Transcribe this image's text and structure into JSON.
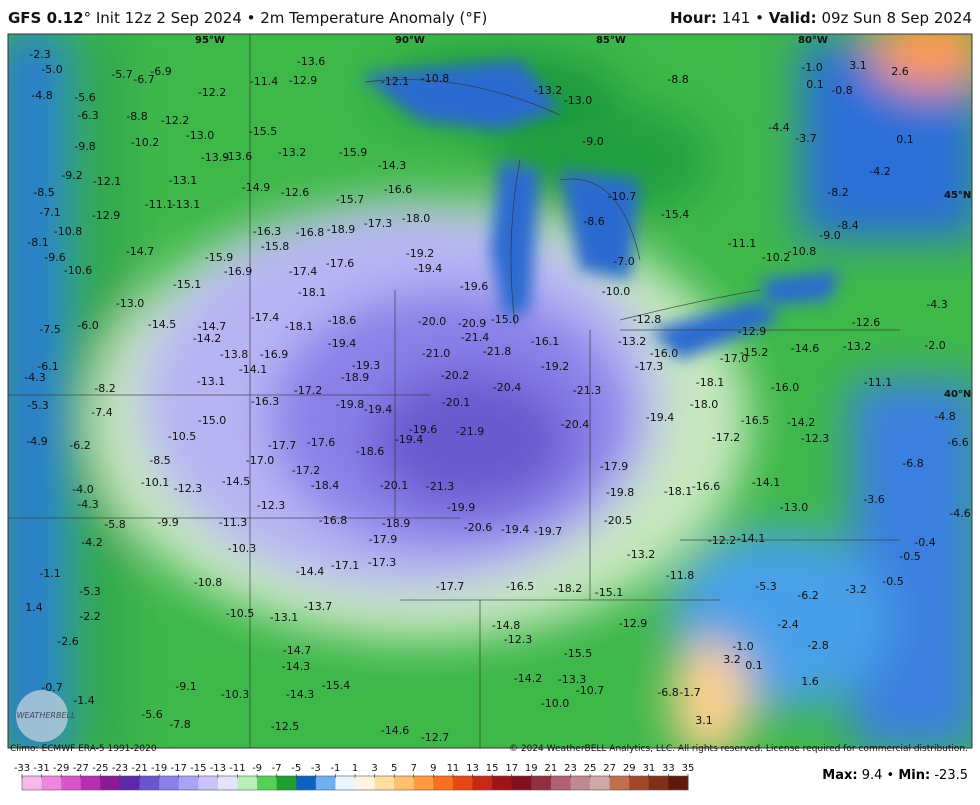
{
  "header": {
    "model": "GFS 0.12",
    "description": "° Init 12z 2 Sep 2024 • 2m Temperature Anomaly (°F)",
    "hour_label": "Hour:",
    "hour_value": "141 •",
    "valid_label": "Valid:",
    "valid_value": "09z Sun 8 Sep 2024"
  },
  "geo_labels": [
    "95°W",
    "90°W",
    "85°W",
    "80°W",
    "45°N",
    "40°N"
  ],
  "map": {
    "labels": [
      "-2.3",
      "-5.0",
      "-4.8",
      "-5.6",
      "-6.3",
      "-9.8",
      "-9.2",
      "-8.5",
      "-7.1",
      "-10.8",
      "-8.1",
      "-9.6",
      "-10.6",
      "-7.5",
      "-6.0",
      "-6.1",
      "-4.3",
      "-8.2",
      "-5.3",
      "-7.4",
      "-4.9",
      "-6.2",
      "-4.0",
      "-4.3",
      "-5.8",
      "-4.2",
      "-1.1",
      "-5.3",
      "1.4",
      "-2.2",
      "-2.6",
      "-0.7",
      "-1.4",
      "-5.6",
      "-7.8",
      "-12.5",
      "-14.6",
      "-12.7",
      "-10.0",
      "-13.3",
      "-14.2",
      "-15.5",
      "-12.3",
      "-14.8",
      "-17.7",
      "-16.5",
      "-18.2",
      "-19.4",
      "-20.6",
      "-19.7",
      "-20.5",
      "-19.8",
      "-18.1",
      "-17.9",
      "-21.9",
      "-20.4",
      "-21.3",
      "-20.4",
      "-20.1",
      "-20.2",
      "-21.0",
      "-20.0",
      "-20.9",
      "-21.4",
      "-21.8",
      "-19.2",
      "-18.1",
      "-19.4",
      "-15.0",
      "-19.6",
      "-19.4",
      "-19.2",
      "-18.0",
      "-17.3",
      "-16.6",
      "-14.3",
      "-12.1",
      "-10.8",
      "-13.2",
      "-13.0",
      "-8.8",
      "-9.0",
      "-10.7",
      "-8.6",
      "-7.0",
      "-10.0",
      "-12.8",
      "-16.0",
      "-17.3",
      "-13.2",
      "-16.1",
      "-15.4",
      "-11.1",
      "-10.2",
      "-10.8",
      "-9.0",
      "-8.4",
      "-8.2",
      "-4.2",
      "0.1",
      "-1.0",
      "3.1",
      "2.6",
      "0.1",
      "-0.8",
      "-4.4",
      "-3.7",
      "-12.6",
      "-13.2",
      "-14.6",
      "-11.1",
      "-4.3",
      "-2.0",
      "-4.8",
      "-6.6",
      "-6.8",
      "-3.6",
      "-4.6",
      "-0.4",
      "-0.5",
      "-0.5",
      "-3.2",
      "-6.2",
      "-5.3",
      "-2.4",
      "-1.0",
      "3.2",
      "0.1",
      "-2.8",
      "1.6",
      "3.1",
      "-1.7",
      "-6.8",
      "-10.7",
      "-12.9",
      "-13.2",
      "-15.1",
      "-11.8",
      "-12.2",
      "-14.1",
      "-13.0",
      "-14.1",
      "-16.6",
      "-17.2",
      "-14.2",
      "-12.3",
      "-16.5",
      "-18.0",
      "-15.2",
      "-17.0",
      "-12.9",
      "-16.0",
      "-10.1",
      "-12.3",
      "-14.5",
      "-12.3",
      "-16.8",
      "-18.9",
      "-17.9",
      "-17.3",
      "-17.1",
      "-14.4",
      "-13.7",
      "-13.1",
      "-14.7",
      "-14.3",
      "-15.4",
      "-14.3",
      "-10.3",
      "-9.1",
      "-10.5",
      "-10.8",
      "-11.3",
      "-9.9",
      "-10.3",
      "-8.5",
      "-10.5",
      "-15.0",
      "-17.0",
      "-17.7",
      "-17.6",
      "-17.2",
      "-18.4",
      "-20.1",
      "-21.3",
      "-19.9",
      "-18.6",
      "-19.4",
      "-19.6",
      "-19.4",
      "-19.8",
      "-16.3",
      "-17.2",
      "-18.9",
      "-19.3",
      "-19.4",
      "-18.1",
      "-18.6",
      "-17.4",
      "-13.8",
      "-16.9",
      "-14.1",
      "-13.1",
      "-14.2",
      "-14.7",
      "-14.5",
      "-13.0",
      "-15.1",
      "-16.9",
      "-17.4",
      "-18.1",
      "-17.6",
      "-15.8",
      "-16.3",
      "-16.8",
      "-18.9",
      "-15.9",
      "-14.7",
      "-14.9",
      "-12.6",
      "-13.2",
      "-15.9",
      "-15.7",
      "-13.9",
      "-13.6",
      "-15.5",
      "-13.0",
      "-12.2",
      "-8.8",
      "-12.2",
      "-11.4",
      "-12.9",
      "-13.6",
      "-6.9",
      "-6.7",
      "-5.7",
      "-12.1",
      "-13.1",
      "-11.1",
      "-13.1",
      "-12.9",
      "-10.2"
    ]
  },
  "footer": {
    "climo": "Climo: ECMWF ERA-5 1991-2020",
    "copyright": "© 2024 WeatherBELL Analytics, LLC. All rights reserved. License required for commercial distribution.",
    "logo": "WEATHERBELL",
    "max_label": "Max:",
    "max_value": "9.4",
    "separator": "•",
    "min_label": "Min:",
    "min_value": "-23.5"
  },
  "colorbar": {
    "ticks": [
      -33,
      -31,
      -29,
      -27,
      -25,
      -23,
      -21,
      -19,
      -17,
      -15,
      -13,
      -11,
      -9,
      -7,
      -5,
      -3,
      -1,
      1,
      3,
      5,
      7,
      9,
      11,
      13,
      15,
      17,
      19,
      21,
      23,
      25,
      27,
      29,
      31,
      33,
      35
    ],
    "colors": [
      "#f7b8ec",
      "#ec88dc",
      "#d857c8",
      "#b52fb0",
      "#8a1a95",
      "#5a2aa8",
      "#6a55d0",
      "#8a80e8",
      "#a8a4f4",
      "#c8c4fa",
      "#e4e2fc",
      "#b8f0b8",
      "#58d058",
      "#20a030",
      "#1060c0",
      "#70b0f0",
      "#e8f4ff",
      "#fff4e0",
      "#ffe0a0",
      "#ffc070",
      "#ff9a40",
      "#f87020",
      "#e84818",
      "#c82818",
      "#a01418",
      "#801020",
      "#903040",
      "#b06070",
      "#c08890",
      "#d0a8a8",
      "#c07050",
      "#a04828",
      "#803018",
      "#601808"
    ]
  }
}
